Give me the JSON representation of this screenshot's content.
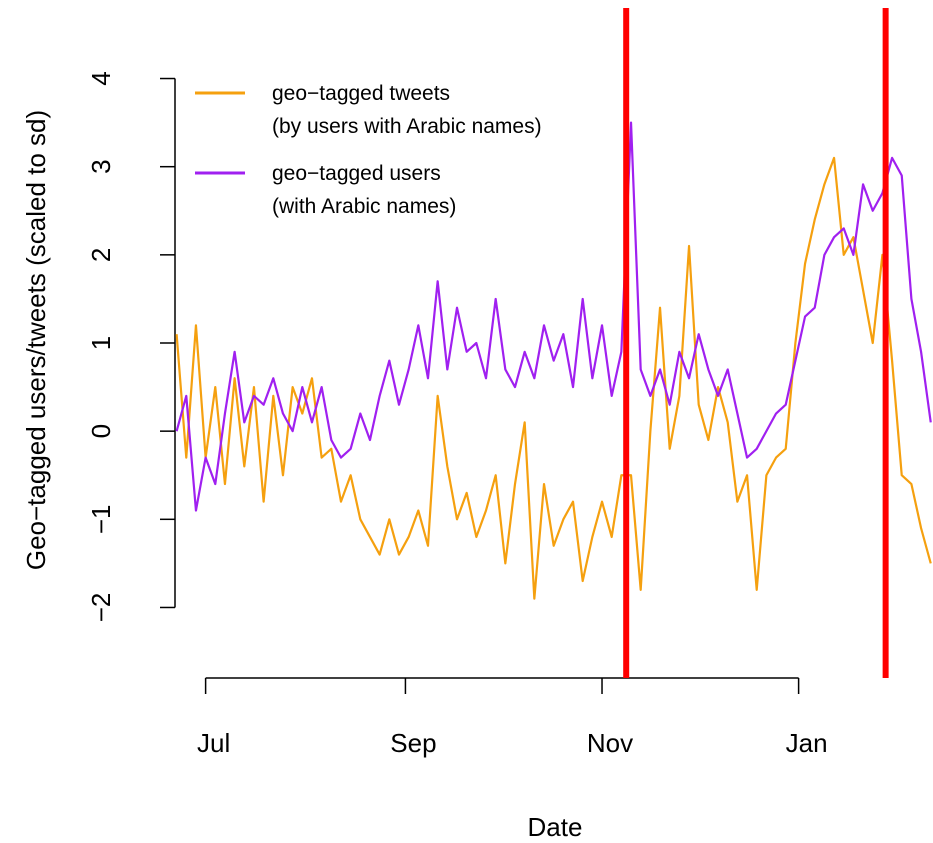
{
  "chart_data": {
    "type": "line",
    "xlabel": "Date",
    "ylabel": "Geo−tagged users/tweets (scaled to sd)",
    "x": [
      -9,
      -6,
      -3,
      0,
      3,
      6,
      9,
      12,
      15,
      18,
      21,
      24,
      27,
      30,
      33,
      36,
      39,
      42,
      45,
      48,
      51,
      54,
      57,
      60,
      63,
      66,
      69,
      72,
      75,
      78,
      81,
      84,
      87,
      90,
      93,
      96,
      99,
      102,
      105,
      108,
      111,
      114,
      117,
      120,
      123,
      126,
      129,
      132,
      135,
      138,
      141,
      144,
      147,
      150,
      153,
      156,
      159,
      162,
      165,
      168,
      171,
      174,
      177,
      180,
      183,
      186,
      189,
      192,
      195,
      198,
      201,
      204,
      207,
      210,
      213,
      216,
      219,
      222,
      225
    ],
    "series": [
      {
        "name": "geo−tagged tweets\n(by users with Arabic names)",
        "color": "#f5a00f",
        "values": [
          1.1,
          -0.3,
          1.2,
          -0.3,
          0.5,
          -0.6,
          0.6,
          -0.4,
          0.5,
          -0.8,
          0.4,
          -0.5,
          0.5,
          0.2,
          0.6,
          -0.3,
          -0.2,
          -0.8,
          -0.5,
          -1.0,
          -1.2,
          -1.4,
          -1.0,
          -1.4,
          -1.2,
          -0.9,
          -1.3,
          0.4,
          -0.4,
          -1.0,
          -0.7,
          -1.2,
          -0.9,
          -0.5,
          -1.5,
          -0.6,
          0.1,
          -1.9,
          -0.6,
          -1.3,
          -1.0,
          -0.8,
          -1.7,
          -1.2,
          -0.8,
          -1.2,
          -0.5,
          -0.5,
          -1.8,
          0.0,
          1.4,
          -0.2,
          0.4,
          2.1,
          0.3,
          -0.1,
          0.5,
          0.1,
          -0.8,
          -0.5,
          -1.8,
          -0.5,
          -0.3,
          -0.2,
          1.0,
          1.9,
          2.4,
          2.8,
          3.1,
          2.0,
          2.2,
          1.6,
          1.0,
          2.0,
          0.8,
          -0.5,
          -0.6,
          -1.1,
          -1.5
        ]
      },
      {
        "name": "geo−tagged users\n(with Arabic names)",
        "color": "#a020f0",
        "values": [
          0.0,
          0.4,
          -0.9,
          -0.3,
          -0.6,
          0.2,
          0.9,
          0.1,
          0.4,
          0.3,
          0.6,
          0.2,
          0.0,
          0.5,
          0.1,
          0.5,
          -0.1,
          -0.3,
          -0.2,
          0.2,
          -0.1,
          0.4,
          0.8,
          0.3,
          0.7,
          1.2,
          0.6,
          1.7,
          0.7,
          1.4,
          0.9,
          1.0,
          0.6,
          1.5,
          0.7,
          0.5,
          0.9,
          0.6,
          1.2,
          0.8,
          1.1,
          0.5,
          1.5,
          0.6,
          1.2,
          0.4,
          0.9,
          3.5,
          0.7,
          0.4,
          0.7,
          0.3,
          0.9,
          0.6,
          1.1,
          0.7,
          0.4,
          0.7,
          0.2,
          -0.3,
          -0.2,
          0.0,
          0.2,
          0.3,
          0.8,
          1.3,
          1.4,
          2.0,
          2.2,
          2.3,
          2.0,
          2.8,
          2.5,
          2.7,
          3.1,
          2.9,
          1.5,
          0.9,
          0.1
        ]
      }
    ],
    "vlines": [
      {
        "x": 130.5,
        "color": "#ff0000"
      },
      {
        "x": 211,
        "color": "#ff0000"
      }
    ],
    "xlim": [
      -9.5,
      225.7
    ],
    "xticks": [
      {
        "value": 0,
        "label": "Jul"
      },
      {
        "value": 62,
        "label": "Sep"
      },
      {
        "value": 123,
        "label": "Nov"
      },
      {
        "value": 184,
        "label": "Jan"
      }
    ],
    "ylim": [
      -2.8,
      4.8
    ],
    "yticks": [
      {
        "value": -2,
        "label": "−2"
      },
      {
        "value": -1,
        "label": "−1"
      },
      0,
      1,
      2,
      3,
      4
    ],
    "legend": "top-left"
  }
}
